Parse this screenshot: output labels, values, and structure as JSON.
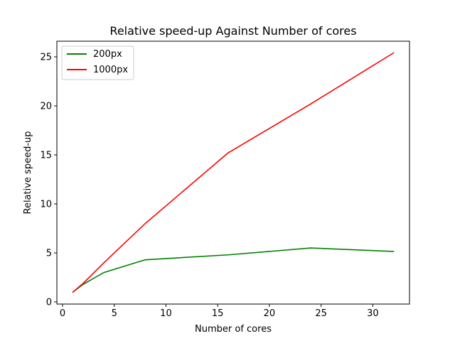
{
  "chart_data": {
    "type": "line",
    "title": "Relative speed-up Against Number of cores",
    "xlabel": "Number of cores",
    "ylabel": "Relative speed-up",
    "xlim": [
      -0.55,
      33.55
    ],
    "ylim": [
      -0.22,
      26.6
    ],
    "xticks": [
      0,
      5,
      10,
      15,
      20,
      25,
      30
    ],
    "yticks": [
      0,
      5,
      10,
      15,
      20,
      25
    ],
    "xtick_labels": [
      "0",
      "5",
      "10",
      "15",
      "20",
      "25",
      "30"
    ],
    "ytick_labels": [
      "0",
      "5",
      "10",
      "15",
      "20",
      "25"
    ],
    "grid": false,
    "legend_position": "top-left",
    "series": [
      {
        "name": "200px",
        "color": "#008000",
        "x": [
          1,
          2,
          4,
          8,
          16,
          24,
          32
        ],
        "y": [
          1.0,
          1.8,
          3.0,
          4.3,
          4.8,
          5.5,
          5.15
        ]
      },
      {
        "name": "1000px",
        "color": "#ff0000",
        "x": [
          1,
          2,
          4,
          8,
          16,
          24,
          32
        ],
        "y": [
          1.0,
          1.9,
          4.0,
          8.0,
          15.2,
          20.2,
          25.4
        ]
      }
    ]
  }
}
